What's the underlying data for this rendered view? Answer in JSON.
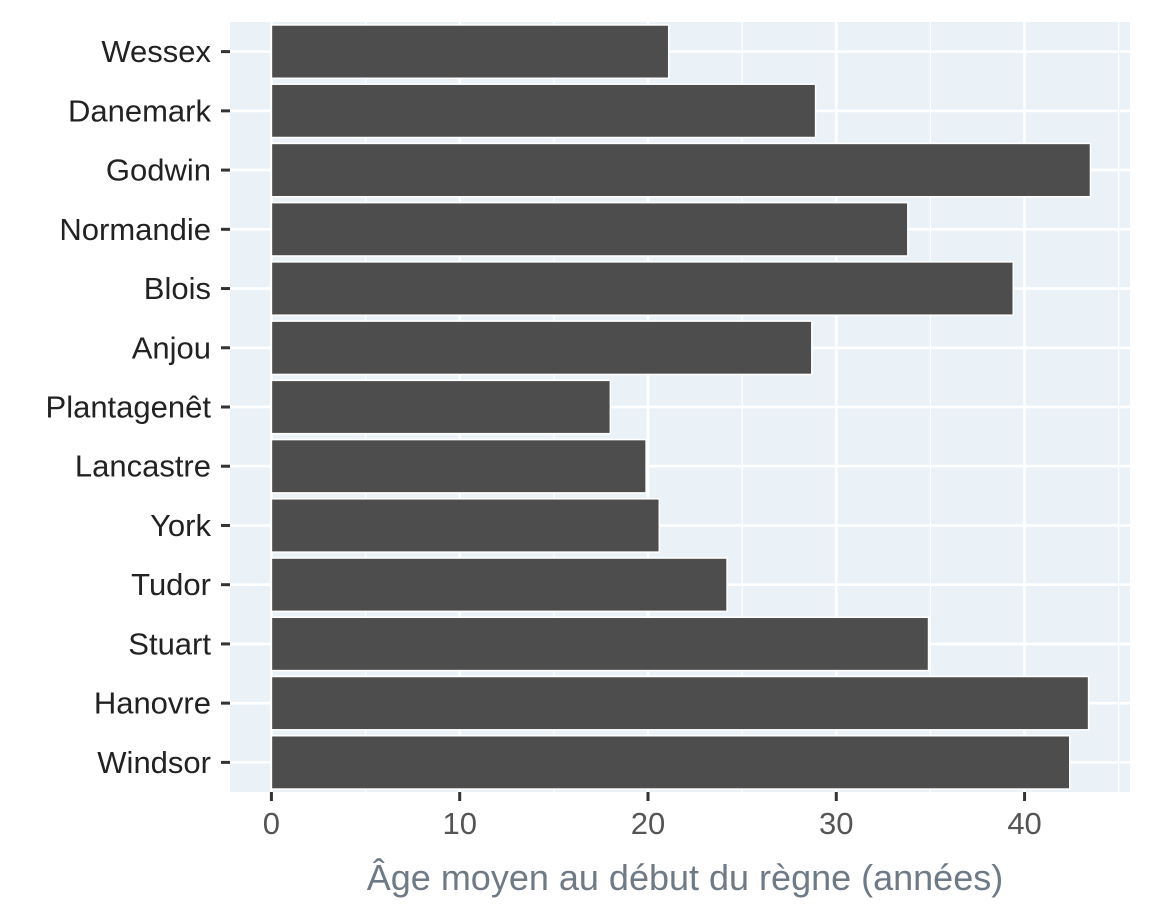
{
  "chart_data": {
    "type": "bar",
    "orientation": "horizontal",
    "categories": [
      "Wessex",
      "Danemark",
      "Godwin",
      "Normandie",
      "Blois",
      "Anjou",
      "Plantagenêt",
      "Lancastre",
      "York",
      "Tudor",
      "Stuart",
      "Hanovre",
      "Windsor"
    ],
    "values": [
      21.1,
      28.9,
      43.5,
      33.8,
      39.4,
      28.7,
      18.0,
      19.9,
      20.6,
      24.2,
      34.9,
      43.4,
      42.4
    ],
    "xlabel": "Âge moyen au début du règne (années)",
    "ylabel": "",
    "xlim": [
      -2.2,
      45.6
    ],
    "xticks": [
      "0",
      "10",
      "20",
      "30",
      "40"
    ],
    "grid": true,
    "colors": {
      "bar_fill": "#4d4d4d",
      "bar_stroke": "#ffffff",
      "panel_background": "#ebf2f7",
      "gridline": "#ffffff",
      "tick_mark": "#333333"
    }
  }
}
